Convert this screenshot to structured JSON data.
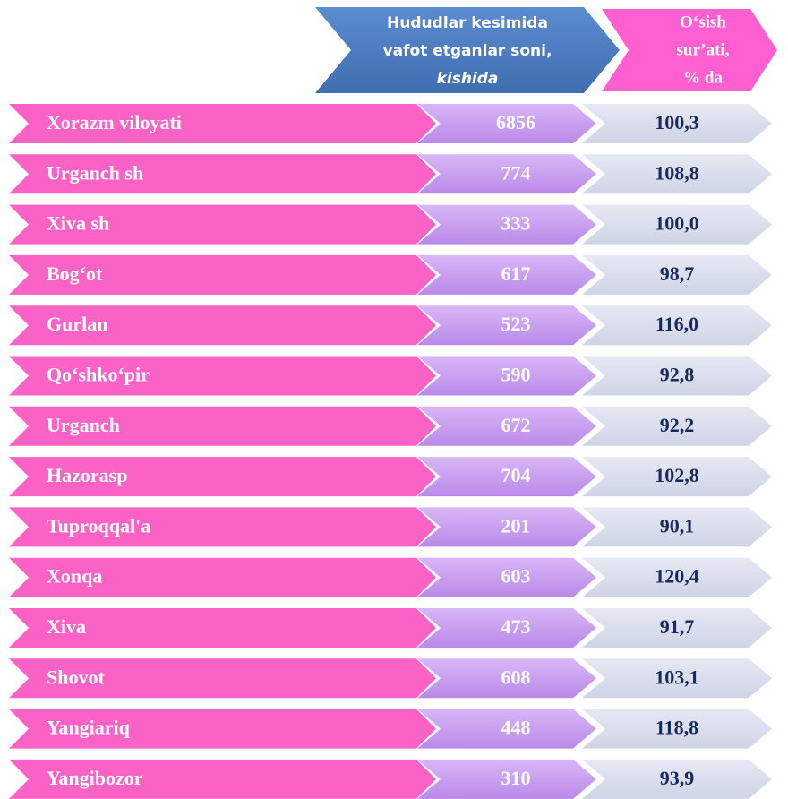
{
  "header": {
    "count_lines": [
      "Hududlar kesimida",
      "vafot etganlar soni,",
      "kishida"
    ],
    "growth_lines": [
      "O‘sish",
      "sur’ati,",
      "% da"
    ]
  },
  "table": {
    "rows": [
      [
        "Xorazm viloyati",
        "6856",
        "100,3"
      ],
      [
        "Urganch sh",
        "774",
        "108,8"
      ],
      [
        "Xiva sh",
        "333",
        "100,0"
      ],
      [
        "Bog‘ot",
        "617",
        "98,7"
      ],
      [
        "Gurlan",
        "523",
        "116,0"
      ],
      [
        "Qo‘shko‘pir",
        "590",
        "92,8"
      ],
      [
        "Urganch",
        "672",
        "92,2"
      ],
      [
        "Hazorasp",
        "704",
        "102,8"
      ],
      [
        "Tuproqqal'a",
        "201",
        "90,1"
      ],
      [
        "Xonqa",
        "603",
        "120,4"
      ],
      [
        "Xiva",
        "473",
        "91,7"
      ],
      [
        "Shovot",
        "608",
        "103,1"
      ],
      [
        "Yangiariq",
        "448",
        "118,8"
      ],
      [
        "Yangibozor",
        "310",
        "93,9"
      ]
    ]
  }
}
